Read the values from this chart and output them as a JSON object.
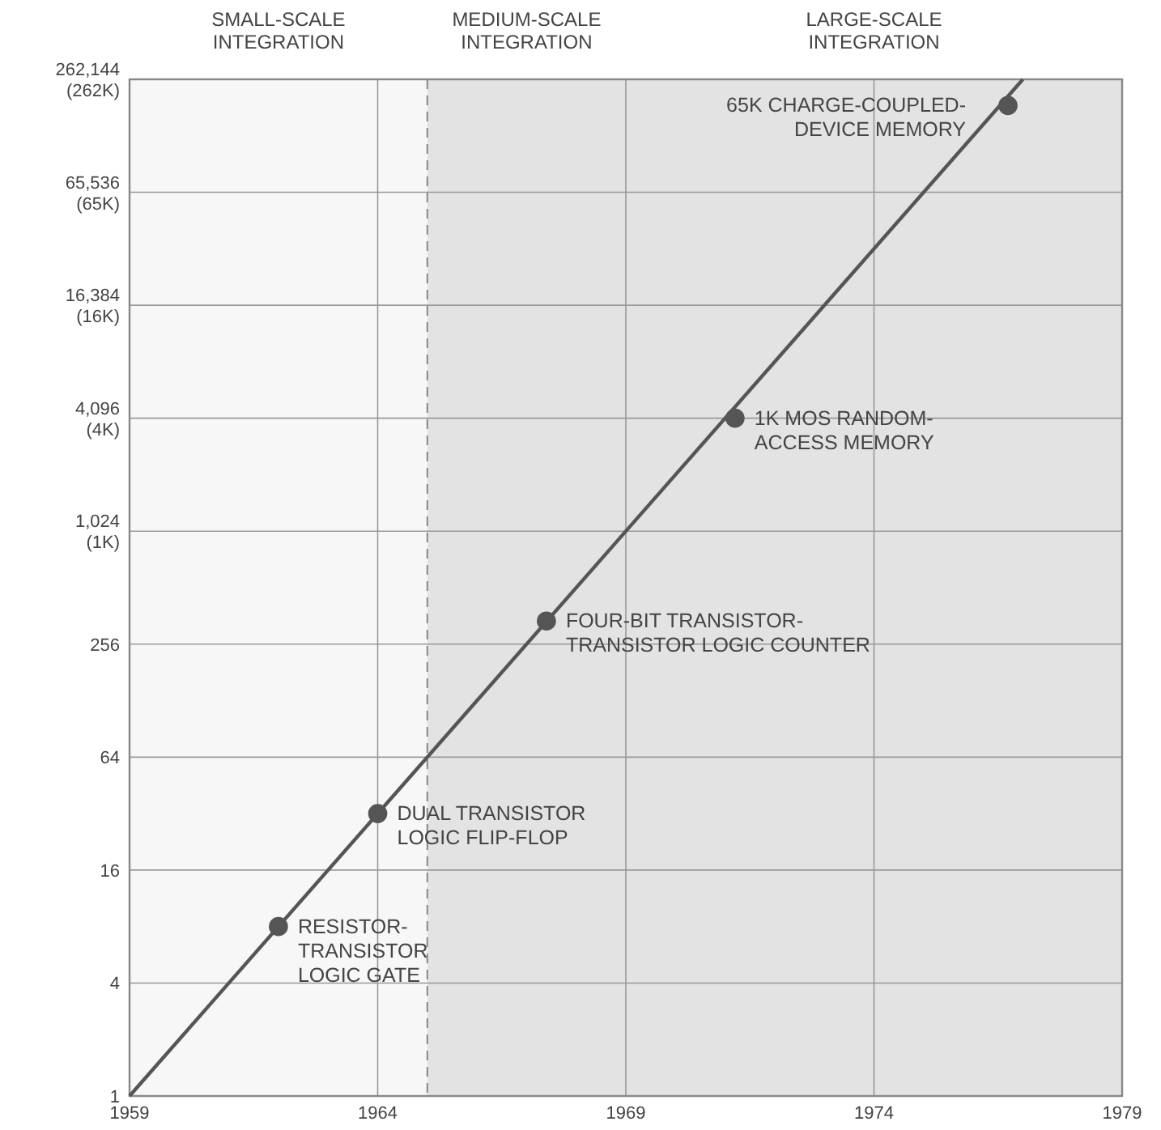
{
  "chart_data": {
    "type": "line",
    "series": [
      {
        "color": "#555555",
        "marker": "none",
        "x": [
          1959,
          1977
        ],
        "values": [
          1,
          262144
        ]
      },
      {
        "type": "scatter",
        "color": "#555555",
        "marker": "circle",
        "x": [
          1962,
          1964,
          1967.4,
          1971.2,
          1976.7
        ],
        "values": [
          8,
          32,
          340,
          4096,
          190000
        ]
      }
    ],
    "log": "y",
    "xlim": [
      1959,
      1979
    ],
    "xticks": [
      1959,
      1964,
      1969,
      1974,
      1979
    ],
    "ylim": [
      1,
      262144
    ],
    "yticks": [
      1,
      4,
      16,
      64,
      256,
      {
        "value": 1024,
        "label": "1,024\n(1K)"
      },
      {
        "value": 4096,
        "label": "4,096\n(4K)"
      },
      {
        "value": 16384,
        "label": "16,384\n(16K)"
      },
      {
        "value": 65536,
        "label": "65,536\n(65K)"
      },
      {
        "value": 262144,
        "label": "262,144\n(262K)"
      }
    ],
    "grid": true,
    "ref_lines": [
      {
        "axis": "x",
        "value": 1965,
        "line_style": "dashed",
        "color": "#888888"
      }
    ],
    "bands": [
      {
        "axis": "x",
        "from": 1959,
        "to": 1965,
        "label": "SMALL-SCALE\nINTEGRATION",
        "color": "#f7f7f7"
      },
      {
        "axis": "x",
        "from": 1965,
        "to": 1969,
        "label": "MEDIUM-SCALE\nINTEGRATION",
        "color": "#e3e3e3"
      },
      {
        "axis": "x",
        "from": 1969,
        "to": 1979,
        "label": "LARGE-SCALE\nINTEGRATION",
        "color": "#e3e3e3"
      }
    ],
    "annotations": [
      {
        "text": "RESISTOR-\nTRANSISTOR\nLOGIC GATE",
        "x": 1962,
        "y": 8
      },
      {
        "text": "DUAL TRANSISTOR\nLOGIC FLIP-FLOP",
        "x": 1964,
        "y": 32
      },
      {
        "text": "FOUR-BIT TRANSISTOR-\nTRANSISTOR LOGIC COUNTER",
        "x": 1967.4,
        "y": 340
      },
      {
        "text": "1K MOS RANDOM-\nACCESS MEMORY",
        "x": 1971.2,
        "y": 4096
      },
      {
        "text": "65K CHARGE-COUPLED-\nDEVICE MEMORY",
        "x": 1976.7,
        "y": 190000
      }
    ]
  }
}
